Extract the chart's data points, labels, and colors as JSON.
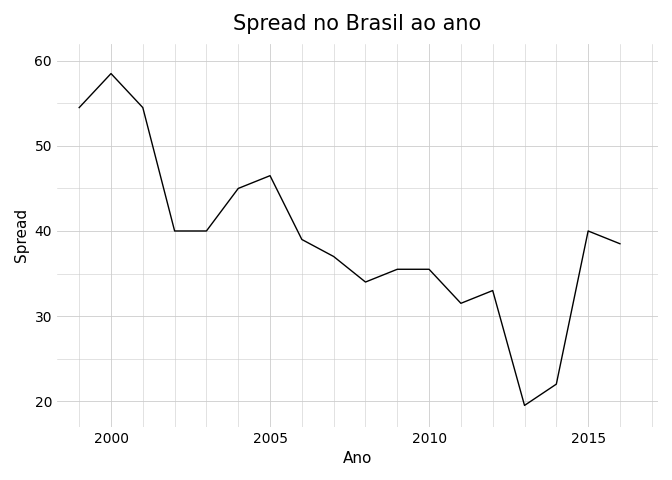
{
  "years": [
    1999,
    2000,
    2001,
    2002,
    2003,
    2004,
    2005,
    2006,
    2007,
    2008,
    2009,
    2010,
    2011,
    2012,
    2013,
    2014,
    2015,
    2016
  ],
  "spread": [
    54.5,
    58.5,
    54.5,
    40.0,
    40.0,
    45.0,
    46.5,
    39.0,
    37.0,
    34.0,
    35.5,
    35.5,
    31.5,
    33.0,
    19.5,
    22.0,
    40.0,
    38.5
  ],
  "title": "Spread no Brasil ao ano",
  "xlabel": "Ano",
  "ylabel": "Spread",
  "xlim": [
    1998.3,
    2017.2
  ],
  "ylim": [
    17,
    62
  ],
  "yticks": [
    20,
    30,
    40,
    50,
    60
  ],
  "xticks": [
    2000,
    2005,
    2010,
    2015
  ],
  "line_color": "#000000",
  "line_width": 1.0,
  "bg_color": "#ffffff",
  "plot_bg_color": "#ffffff",
  "grid_color": "#cccccc",
  "title_fontsize": 15,
  "axis_label_fontsize": 11,
  "tick_fontsize": 10
}
